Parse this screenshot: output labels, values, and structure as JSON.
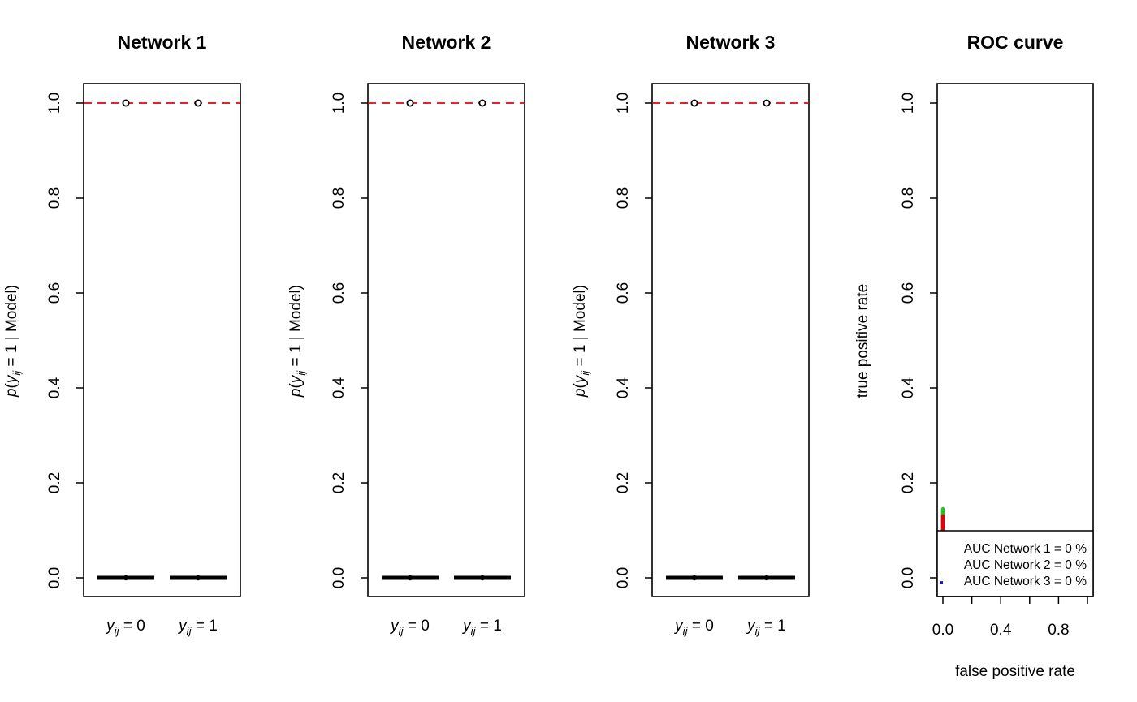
{
  "chart_data": [
    {
      "type": "boxplot",
      "title": "Network 1",
      "ylabel": "p(y_ij = 1 | Model)",
      "ylim": [
        0,
        1
      ],
      "yticks": [
        "0.0",
        "0.2",
        "0.4",
        "0.6",
        "0.8",
        "1.0"
      ],
      "categories": [
        "y_ij = 0",
        "y_ij = 1"
      ],
      "median": [
        0.0,
        0.0
      ],
      "outliers": [
        1.0,
        1.0
      ],
      "reference_line": 1.0,
      "reference_color": "#e8000b"
    },
    {
      "type": "boxplot",
      "title": "Network 2",
      "ylabel": "p(y_ij = 1 | Model)",
      "ylim": [
        0,
        1
      ],
      "yticks": [
        "0.0",
        "0.2",
        "0.4",
        "0.6",
        "0.8",
        "1.0"
      ],
      "categories": [
        "y_ij = 0",
        "y_ij = 1"
      ],
      "median": [
        0.0,
        0.0
      ],
      "outliers": [
        1.0,
        1.0
      ],
      "reference_line": 1.0,
      "reference_color": "#e8000b"
    },
    {
      "type": "boxplot",
      "title": "Network 3",
      "ylabel": "p(y_ij = 1 | Model)",
      "ylim": [
        0,
        1
      ],
      "yticks": [
        "0.0",
        "0.2",
        "0.4",
        "0.6",
        "0.8",
        "1.0"
      ],
      "categories": [
        "y_ij = 0",
        "y_ij = 1"
      ],
      "median": [
        0.0,
        0.0
      ],
      "outliers": [
        1.0,
        1.0
      ],
      "reference_line": 1.0,
      "reference_color": "#e8000b"
    },
    {
      "type": "line",
      "title": "ROC curve",
      "xlabel": "false positive rate",
      "ylabel": "true positive rate",
      "xlim": [
        0,
        1
      ],
      "ylim": [
        0,
        1
      ],
      "xticks": [
        "0.0",
        "0.4",
        "0.8"
      ],
      "yticks": [
        "0.0",
        "0.2",
        "0.4",
        "0.6",
        "0.8",
        "1.0"
      ],
      "series": [
        {
          "name": "AUC Network 1 = 0 %",
          "color": "#1a1a1a",
          "x": [
            0,
            0
          ],
          "y": [
            0,
            0.1
          ]
        },
        {
          "name": "AUC Network 2 = 0 %",
          "color": "#e8000b",
          "x": [
            0,
            0
          ],
          "y": [
            0,
            0.13
          ]
        },
        {
          "name": "AUC Network 3 = 0 %",
          "color": "#1010d8",
          "x": [
            -0.02,
            0.0
          ],
          "y": [
            -0.005,
            -0.005
          ]
        }
      ],
      "extra_series_color": "#22c422",
      "extra_series": {
        "x": [
          0,
          0
        ],
        "y": [
          0,
          0.145
        ]
      },
      "legend_position": "bottom-right"
    }
  ]
}
